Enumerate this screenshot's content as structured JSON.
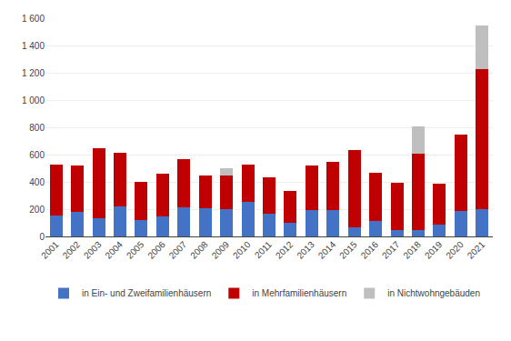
{
  "chart_data": {
    "type": "bar",
    "stacked": true,
    "categories": [
      "2001",
      "2002",
      "2003",
      "2004",
      "2005",
      "2006",
      "2007",
      "2008",
      "2009",
      "2010",
      "2011",
      "2012",
      "2013",
      "2014",
      "2015",
      "2016",
      "2017",
      "2018",
      "2019",
      "2020",
      "2021"
    ],
    "series": [
      {
        "name": "in Ein- und Zweifamilienhäusern",
        "color": "#4472C4",
        "values": [
          155,
          178,
          135,
          218,
          120,
          148,
          215,
          205,
          200,
          255,
          170,
          100,
          195,
          195,
          65,
          115,
          50,
          50,
          85,
          185,
          200
        ]
      },
      {
        "name": "in Mehrfamilienhäusern",
        "color": "#C00000",
        "values": [
          375,
          342,
          515,
          398,
          280,
          312,
          350,
          245,
          250,
          270,
          265,
          235,
          325,
          350,
          570,
          355,
          345,
          560,
          305,
          560,
          1030
        ]
      },
      {
        "name": "in Nichtwohngebäuden",
        "color": "#BFBFBF",
        "values": [
          0,
          0,
          0,
          0,
          0,
          0,
          0,
          0,
          50,
          0,
          0,
          0,
          0,
          0,
          0,
          0,
          0,
          195,
          0,
          0,
          320
        ]
      }
    ],
    "ylim": [
      0,
      1600
    ],
    "yticks": [
      0,
      200,
      400,
      600,
      800,
      {
        "value": 1000,
        "label": "1 000"
      },
      {
        "value": 1200,
        "label": "1 200"
      },
      {
        "value": 1400,
        "label": "1 400"
      },
      {
        "value": 1600,
        "label": "1 600"
      }
    ],
    "grid": true,
    "legend": "bottom"
  }
}
